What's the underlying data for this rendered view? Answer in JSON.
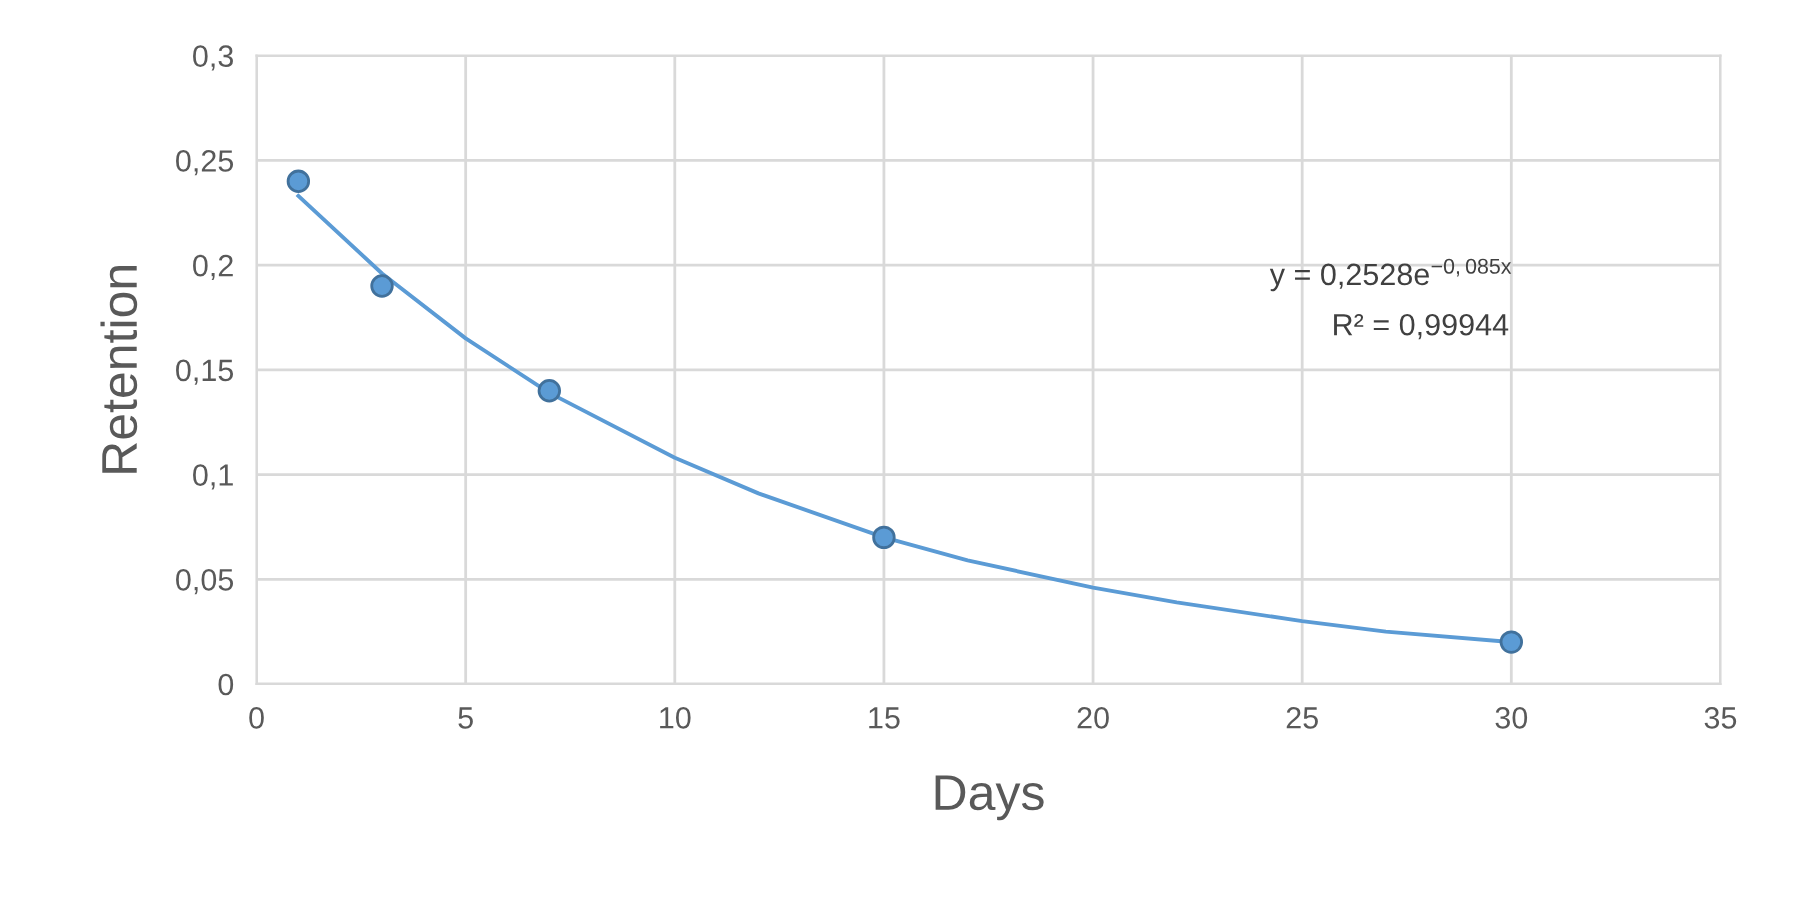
{
  "chart_data": {
    "type": "scatter",
    "xlabel": "Days",
    "ylabel": "Retention",
    "series": [
      {
        "color": "#5b9bd5",
        "x": [
          1,
          3,
          7,
          15,
          30
        ],
        "values": [
          0.24,
          0.19,
          0.14,
          0.07,
          0.02
        ],
        "marker": "circle"
      },
      {
        "type": "line",
        "color": "#5b9bd5",
        "x": [
          1,
          3,
          5,
          7,
          10,
          12,
          15,
          17,
          20,
          22,
          25,
          27,
          30
        ],
        "values": [
          0.233,
          0.196,
          0.165,
          0.139,
          0.108,
          0.091,
          0.07,
          0.059,
          0.046,
          0.039,
          0.03,
          0.025,
          0.02
        ],
        "marker": "none"
      }
    ],
    "xlim": [
      0,
      35
    ],
    "xticks": [
      0,
      5,
      10,
      15,
      20,
      25,
      30,
      35
    ],
    "ylim": [
      0,
      0.3
    ],
    "yticks": [
      0,
      {
        "value": 0.05,
        "label": "0,05"
      },
      {
        "value": 0.1,
        "label": "0,1"
      },
      {
        "value": 0.15,
        "label": "0,15"
      },
      {
        "value": 0.2,
        "label": "0,2"
      },
      {
        "value": 0.25,
        "label": "0,25"
      },
      {
        "value": 0.3,
        "label": "0,3"
      }
    ],
    "grid": true,
    "legend": false,
    "annotations": [
      "y = 0,2528e$^{−0,085x}$",
      "R² = 0,99944"
    ]
  }
}
